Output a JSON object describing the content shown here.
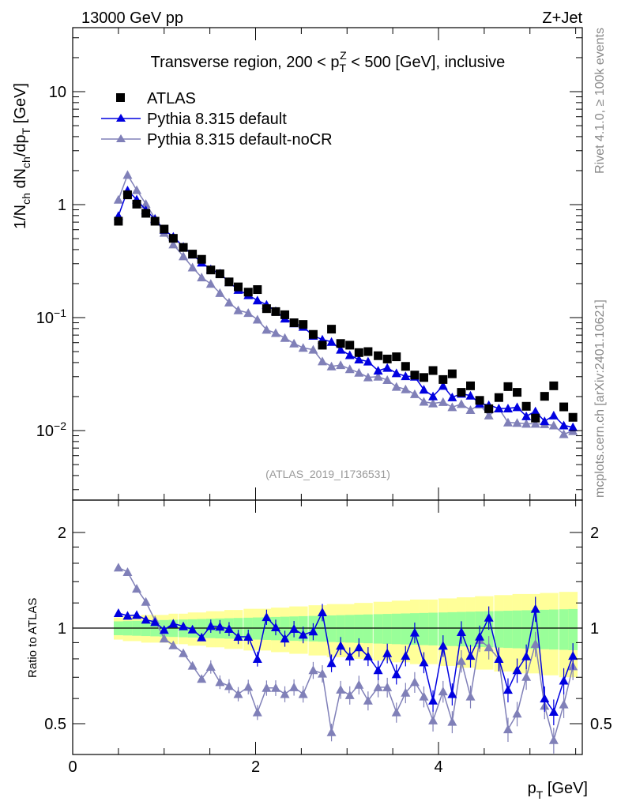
{
  "header": {
    "energy_label": "13000 GeV pp",
    "process_label": "Z+Jet",
    "title_parts": [
      "Transverse region, 200 < p",
      "T",
      "Z",
      " < 500 [GeV], inclusive"
    ],
    "rivet_label": "Rivet 4.1.0, ≥ 100k events",
    "mcplots_label": "mcplots.cern.ch [arXiv:2401.10621]",
    "analysis_label": "(ATLAS_2019_I1736531)"
  },
  "colors": {
    "atlas": "#000000",
    "default": "#0000e0",
    "nocr": "#8080b8",
    "band_inner": "#99ff99",
    "band_outer": "#ffff99"
  },
  "chart_data": [
    {
      "type": "scatter",
      "panel": "main",
      "ylabel_parts": [
        "1/N",
        "ch",
        " dN",
        "ch",
        "/dp",
        "T",
        " [GeV]"
      ],
      "yscale": "log",
      "ylim": [
        0.0024,
        37
      ],
      "xlim": [
        0,
        5.6
      ],
      "yticks": [
        {
          "v": 10,
          "label": "10"
        },
        {
          "v": 1,
          "label": "1"
        },
        {
          "v": 0.1,
          "base": "10",
          "exp": "−1"
        },
        {
          "v": 0.01,
          "base": "10",
          "exp": "−2"
        }
      ],
      "legend_position": "top-left",
      "x": [
        0.5,
        0.6,
        0.7,
        0.8,
        0.9,
        1.0,
        1.1,
        1.21,
        1.31,
        1.41,
        1.51,
        1.61,
        1.71,
        1.81,
        1.92,
        2.02,
        2.12,
        2.22,
        2.32,
        2.42,
        2.52,
        2.63,
        2.73,
        2.83,
        2.93,
        3.03,
        3.13,
        3.23,
        3.34,
        3.44,
        3.54,
        3.64,
        3.74,
        3.84,
        3.94,
        4.05,
        4.15,
        4.25,
        4.35,
        4.45,
        4.55,
        4.66,
        4.76,
        4.86,
        4.96,
        5.06,
        5.16,
        5.26,
        5.37,
        5.47
      ],
      "series": [
        {
          "name": "ATLAS",
          "marker": "square",
          "values": [
            0.713,
            1.22,
            1.01,
            0.838,
            0.713,
            0.607,
            0.503,
            0.418,
            0.365,
            0.328,
            0.264,
            0.244,
            0.207,
            0.187,
            0.168,
            0.177,
            0.12,
            0.113,
            0.106,
            0.09,
            0.087,
            0.071,
            0.057,
            0.079,
            0.059,
            0.057,
            0.049,
            0.05,
            0.046,
            0.043,
            0.045,
            0.037,
            0.031,
            0.0295,
            0.034,
            0.0283,
            0.0318,
            0.0218,
            0.0249,
            0.0185,
            0.0156,
            0.0196,
            0.0245,
            0.0218,
            0.0164,
            0.0129,
            0.0201,
            0.0249,
            0.0162,
            0.0131
          ]
        },
        {
          "name": "Pythia 8.315 default",
          "marker": "triangle",
          "values": [
            0.795,
            1.335,
            1.111,
            0.891,
            0.745,
            0.599,
            0.52,
            0.423,
            0.361,
            0.307,
            0.268,
            0.246,
            0.206,
            0.176,
            0.158,
            0.142,
            0.13,
            0.114,
            0.098,
            0.089,
            0.083,
            0.069,
            0.064,
            0.061,
            0.052,
            0.0465,
            0.0426,
            0.0408,
            0.0339,
            0.0359,
            0.0322,
            0.0303,
            0.03,
            0.023,
            0.0201,
            0.0249,
            0.0197,
            0.0212,
            0.0204,
            0.0174,
            0.0168,
            0.0157,
            0.0157,
            0.0161,
            0.0134,
            0.0148,
            0.0121,
            0.0136,
            0.0111,
            0.0107
          ]
        },
        {
          "name": "Pythia 8.315 default-noCR",
          "marker": "triangle",
          "values": [
            1.106,
            1.832,
            1.344,
            1.014,
            0.755,
            0.563,
            0.444,
            0.349,
            0.278,
            0.227,
            0.199,
            0.165,
            0.136,
            0.116,
            0.11,
            0.096,
            0.078,
            0.073,
            0.066,
            0.059,
            0.054,
            0.052,
            0.041,
            0.037,
            0.038,
            0.035,
            0.0325,
            0.0296,
            0.03,
            0.028,
            0.0244,
            0.0232,
            0.021,
            0.018,
            0.0174,
            0.0179,
            0.0161,
            0.0172,
            0.0152,
            0.017,
            0.0136,
            0.0157,
            0.0118,
            0.0117,
            0.0115,
            0.0115,
            0.0114,
            0.0111,
            0.0093,
            0.0099
          ]
        }
      ]
    },
    {
      "type": "line",
      "panel": "ratio",
      "ylabel": "Ratio to ATLAS",
      "xlabel_parts": [
        "p",
        "T",
        " [GeV]"
      ],
      "yscale": "log",
      "ylim": [
        0.4,
        2.53
      ],
      "xlim": [
        0,
        5.6
      ],
      "xticks": [
        {
          "v": 0,
          "label": "0"
        },
        {
          "v": 2,
          "label": "2"
        },
        {
          "v": 4,
          "label": "4"
        }
      ],
      "yticks": [
        {
          "v": 2,
          "label": "2"
        },
        {
          "v": 1,
          "label": "1"
        },
        {
          "v": 0.5,
          "label": "0.5"
        }
      ],
      "band_inner_halfwidth": [
        0.05,
        0.052,
        0.054,
        0.056,
        0.058,
        0.06,
        0.062,
        0.064,
        0.066,
        0.068,
        0.07,
        0.072,
        0.074,
        0.076,
        0.078,
        0.08,
        0.082,
        0.084,
        0.086,
        0.088,
        0.09,
        0.092,
        0.094,
        0.096,
        0.098,
        0.1,
        0.102,
        0.104,
        0.106,
        0.108,
        0.11,
        0.112,
        0.114,
        0.116,
        0.118,
        0.12,
        0.122,
        0.124,
        0.126,
        0.128,
        0.13,
        0.132,
        0.134,
        0.136,
        0.138,
        0.14,
        0.142,
        0.144,
        0.146,
        0.148
      ],
      "band_outer_halfwidth": [
        0.08,
        0.09,
        0.09,
        0.1,
        0.1,
        0.1,
        0.11,
        0.11,
        0.12,
        0.12,
        0.13,
        0.13,
        0.14,
        0.14,
        0.15,
        0.15,
        0.15,
        0.16,
        0.16,
        0.17,
        0.17,
        0.18,
        0.18,
        0.19,
        0.19,
        0.19,
        0.2,
        0.2,
        0.21,
        0.21,
        0.22,
        0.22,
        0.23,
        0.23,
        0.23,
        0.24,
        0.24,
        0.25,
        0.25,
        0.26,
        0.26,
        0.27,
        0.27,
        0.28,
        0.28,
        0.28,
        0.29,
        0.29,
        0.3,
        0.3
      ],
      "series": [
        {
          "name": "Pythia 8.315 default",
          "values": [
            1.115,
            1.094,
            1.1,
            1.063,
            1.045,
            0.987,
            1.033,
            1.013,
            0.99,
            0.935,
            1.015,
            1.01,
            0.994,
            0.939,
            0.939,
            0.8,
            1.083,
            1.006,
            0.927,
            0.994,
            0.953,
            0.976,
            1.121,
            0.776,
            0.88,
            0.815,
            0.87,
            0.815,
            0.737,
            0.834,
            0.716,
            0.818,
            0.968,
            0.78,
            0.591,
            0.88,
            0.62,
            0.972,
            0.818,
            0.94,
            1.079,
            0.8,
            0.639,
            0.737,
            0.815,
            1.15,
            0.6,
            0.545,
            0.683,
            0.818
          ]
        },
        {
          "name": "Pythia 8.315 default-noCR",
          "values": [
            1.551,
            1.502,
            1.331,
            1.21,
            1.059,
            0.927,
            0.883,
            0.834,
            0.761,
            0.692,
            0.755,
            0.676,
            0.657,
            0.62,
            0.653,
            0.543,
            0.648,
            0.648,
            0.62,
            0.651,
            0.62,
            0.737,
            0.719,
            0.47,
            0.64,
            0.615,
            0.663,
            0.591,
            0.651,
            0.651,
            0.543,
            0.626,
            0.676,
            0.609,
            0.512,
            0.632,
            0.507,
            0.788,
            0.609,
            0.918,
            0.87,
            0.8,
            0.48,
            0.538,
            0.702,
            0.892,
            0.569,
            0.444,
            0.575,
            0.758
          ]
        }
      ]
    }
  ]
}
